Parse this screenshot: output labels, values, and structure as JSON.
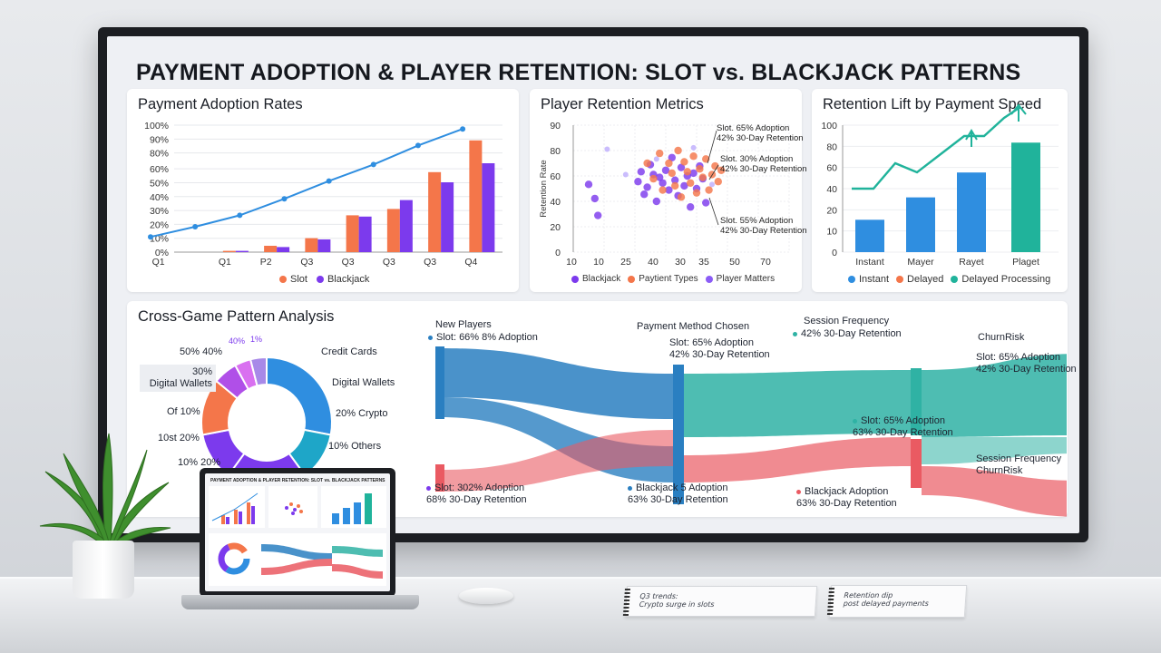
{
  "dashboard": {
    "title": "PAYMENT ADOPTION & PLAYER RETENTION: SLOT vs. BLACKJACK PATTERNS"
  },
  "colors": {
    "slot": "#f4764a",
    "blackjack": "#7c3aed",
    "line_blue": "#2f8ee0",
    "teal": "#20b39b",
    "flow_blue": "#2a7fc1",
    "flow_teal": "#2fb2a4",
    "flow_red": "#ea5a62"
  },
  "adoption": {
    "title": "Payment Adoption Rates",
    "legend": [
      "Slot",
      "Blackjack"
    ],
    "chart_data": {
      "type": "bar",
      "categories": [
        "Q1",
        "Q1",
        "P2",
        "Q3",
        "Q3",
        "Q3",
        "Q3",
        "Q4"
      ],
      "y_ticks": [
        "0%",
        "10%",
        "20%",
        "30%",
        "40%",
        "50%",
        "60%",
        "80%",
        "90%",
        "100%"
      ],
      "ylim": [
        0,
        100
      ],
      "series": [
        {
          "name": "Slot",
          "type": "bar",
          "values": [
            0,
            1,
            5,
            11,
            29,
            34,
            63,
            88
          ]
        },
        {
          "name": "Blackjack",
          "type": "bar",
          "values": [
            0,
            1,
            4,
            10,
            28,
            41,
            55,
            70
          ]
        },
        {
          "type": "line",
          "values": [
            12,
            20,
            29,
            42,
            56,
            69,
            84,
            97
          ]
        }
      ]
    }
  },
  "retention": {
    "title": "Player Retention Metrics",
    "ylabel": "Retention Rate",
    "legend": [
      "Blackjack",
      "Paytient Types",
      "Player Matters"
    ],
    "annotations": [
      "Slot. 65% Adoption\n42% 30-Day Retention",
      "Slot. 30% Adoption\n42% 30-Day Retention",
      "Slot. 55% Adoption\n42% 30-Day Retention"
    ],
    "chart_data": {
      "type": "scatter",
      "x_ticks": [
        "10",
        "10",
        "25",
        "40",
        "30",
        "35",
        "50",
        "70"
      ],
      "y_ticks": [
        "0",
        "20",
        "40",
        "60",
        "80",
        "90"
      ],
      "ylim": [
        0,
        90
      ],
      "series": [
        {
          "name": "Blackjack",
          "points": [
            [
              5,
              48
            ],
            [
              7,
              38
            ],
            [
              8,
              26
            ],
            [
              21,
              50
            ],
            [
              22,
              57
            ],
            [
              23,
              41
            ],
            [
              24,
              46
            ],
            [
              25,
              62
            ],
            [
              26,
              55
            ],
            [
              27,
              36
            ],
            [
              28,
              53
            ],
            [
              29,
              49
            ],
            [
              30,
              58
            ],
            [
              31,
              44
            ],
            [
              32,
              67
            ],
            [
              33,
              51
            ],
            [
              34,
              40
            ],
            [
              35,
              60
            ],
            [
              36,
              47
            ],
            [
              37,
              54
            ],
            [
              38,
              32
            ],
            [
              39,
              56
            ],
            [
              40,
              45
            ],
            [
              41,
              61
            ],
            [
              42,
              52
            ],
            [
              43,
              35
            ]
          ]
        },
        {
          "name": "Paytient Types",
          "points": [
            [
              24,
              63
            ],
            [
              26,
              52
            ],
            [
              28,
              70
            ],
            [
              29,
              44
            ],
            [
              31,
              63
            ],
            [
              32,
              56
            ],
            [
              33,
              47
            ],
            [
              34,
              72
            ],
            [
              35,
              39
            ],
            [
              36,
              64
            ],
            [
              37,
              57
            ],
            [
              38,
              49
            ],
            [
              39,
              68
            ],
            [
              40,
              42
            ],
            [
              41,
              59
            ],
            [
              42,
              53
            ],
            [
              43,
              66
            ],
            [
              44,
              44
            ],
            [
              45,
              55
            ],
            [
              46,
              61
            ],
            [
              47,
              50
            ],
            [
              48,
              58
            ]
          ]
        },
        {
          "name": "Player Matters",
          "points": [
            [
              11,
              73
            ],
            [
              17,
              55
            ],
            [
              27,
              66
            ],
            [
              39,
              74
            ],
            [
              45,
              48
            ]
          ]
        }
      ]
    }
  },
  "lift": {
    "title": "Retention Lift by Payment Speed",
    "legend": [
      "Instant",
      "Delayed",
      "Delayed Processing"
    ],
    "chart_data": {
      "type": "bar",
      "categories": [
        "Instant",
        "Mayer",
        "Rayet",
        "Plaget"
      ],
      "y_ticks": [
        "0",
        "10",
        "20",
        "40",
        "60",
        "80",
        "100"
      ],
      "ylim": [
        0,
        100
      ],
      "series": [
        {
          "name": "Instant",
          "values": [
            26,
            44,
            64,
            88
          ]
        },
        {
          "type": "line",
          "values": [
            35,
            55,
            75,
            96
          ]
        }
      ]
    }
  },
  "crossgame": {
    "title": "Cross-Game Pattern Analysis",
    "donut": {
      "chart_data": {
        "type": "pie",
        "slices": [
          {
            "label": "Credit Cards",
            "value": 28,
            "color": "#2f8ee0"
          },
          {
            "label": "Digital Wallets",
            "value": 12,
            "color": "#1ea6c8"
          },
          {
            "label": "20% Crypto",
            "value": 20,
            "color": "#7c3aed"
          },
          {
            "label": "10% Others",
            "value": 12,
            "color": "#7c3aed"
          },
          {
            "label": "10% 20%",
            "value": 14,
            "color": "#f4764a"
          },
          {
            "label": "Of 10%",
            "value": 6,
            "color": "#b04fe8"
          },
          {
            "label": "30% Digital Wallets",
            "value": 4,
            "color": "#d970f0"
          },
          {
            "label": "50% 40%",
            "value": 4,
            "color": "#a889e8"
          }
        ]
      },
      "labels_right": [
        "Credit Cards",
        "Digital Wallets",
        "20% Crypto",
        "10% Others"
      ],
      "labels_left": [
        "50% 40%",
        "30%\nDigital Wallets",
        "Of 10%",
        "10st 20%",
        "10% 20%"
      ],
      "labels_top": [
        "40%",
        "1%"
      ]
    },
    "sankey": {
      "stages": [
        "New Players",
        "Payment Method Chosen",
        "Session Frequency",
        "ChurnRisk"
      ],
      "labels": {
        "new_players_sub": "Slot: 66% 8% Adoption",
        "slot_mid": "Slot: 65% Adoption\n42% 30-Day Retention",
        "session_sub": "42% 30-Day Retention",
        "churn_top": "Slot: 65% Adoption\n42% 30-Day Retention",
        "slot_lower": "Slot: 65% Adoption\n63% 30-Day Retention",
        "bottom_left": "Slot: 302% Adoption\n68% 30-Day Retention",
        "bottom_mid": "Blackjack 5 Adoption\n63% 30-Day Retention",
        "bottom_right": "Blackjack Adoption\n63% 30-Day Retention",
        "churn_bottom": "Session Frequency\nChurnRisk"
      }
    }
  },
  "laptop": {
    "title": "PAYMENT ADOPTION & PLAYER RETENTION: SLOT vs. BLACKJACK PATTERNS"
  },
  "notebooks": {
    "left": "Q3 trends:\nCrypto surge in slots",
    "right": "Retention dip\npost delayed payments"
  }
}
